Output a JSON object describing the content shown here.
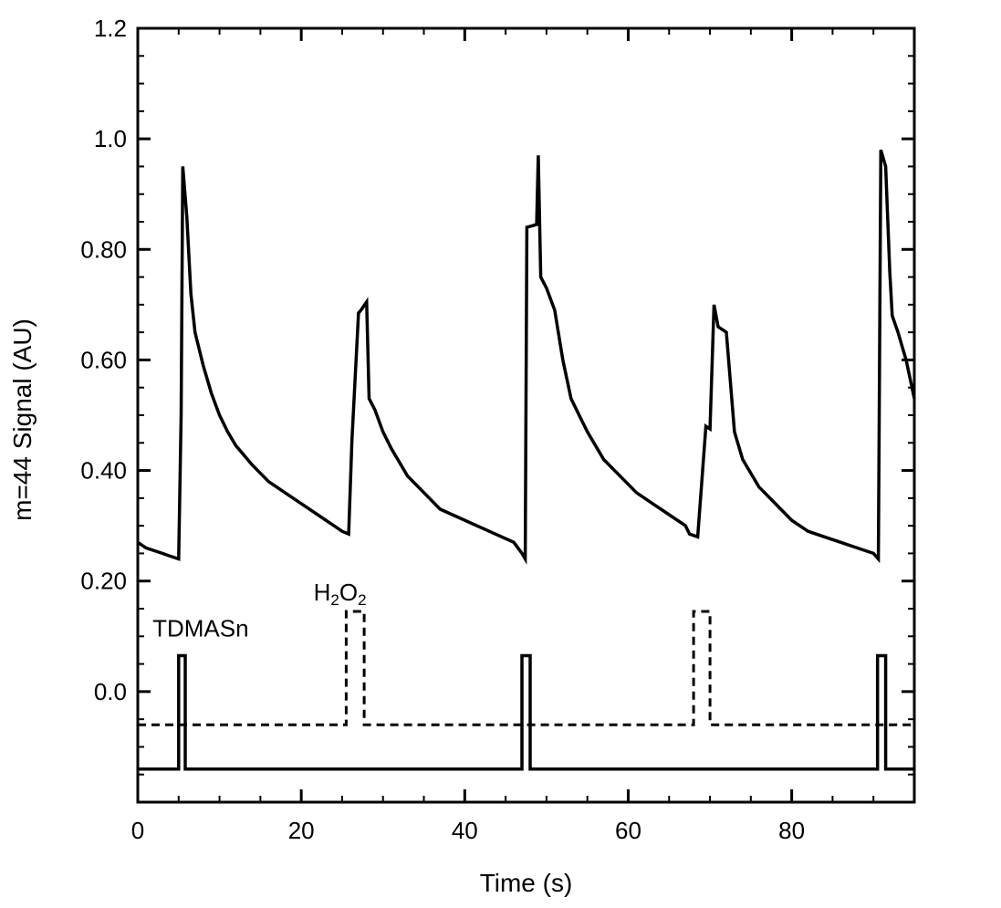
{
  "chart_data": {
    "type": "line",
    "xlabel": "Time (s)",
    "ylabel": "m=44 Signal (AU)",
    "xlim": [
      0,
      95
    ],
    "ylim": [
      -0.2,
      1.2
    ],
    "x_ticks": [
      0,
      20,
      40,
      60,
      80
    ],
    "x_tick_labels": [
      "0",
      "20",
      "40",
      "60",
      "80"
    ],
    "y_ticks": [
      0.0,
      0.2,
      0.4,
      0.6,
      0.8,
      1.0,
      1.2
    ],
    "y_tick_labels": [
      "0.0",
      "0.20",
      "0.40",
      "0.60",
      "0.80",
      "1.0",
      "1.2"
    ],
    "grid": false,
    "annotations": [
      {
        "text": "TDMASn",
        "x": 1.8,
        "y": 0.1
      },
      {
        "text": "H₂O₂",
        "x": 21.5,
        "y": 0.165
      }
    ],
    "series": [
      {
        "style": "solid",
        "color": "#000000",
        "x": [
          0.0,
          1.0,
          2.0,
          3.0,
          4.0,
          5.0,
          5.3,
          5.5,
          6.0,
          6.5,
          7.0,
          8.0,
          9.0,
          10.0,
          11.0,
          12.0,
          14.0,
          16.0,
          18.0,
          20.0,
          22.0,
          23.0,
          24.0,
          25.0,
          25.8,
          26.2,
          27.0,
          27.3,
          28.0,
          28.3,
          29.0,
          30.0,
          31.0,
          33.0,
          35.0,
          37.0,
          40.0,
          43.0,
          46.0,
          47.0,
          47.4,
          47.6,
          48.8,
          49.0,
          49.3,
          50.0,
          51.0,
          52.0,
          53.0,
          54.0,
          55.0,
          57.0,
          59.0,
          61.0,
          63.0,
          65.0,
          67.0,
          67.5,
          68.5,
          69.0,
          69.5,
          70.0,
          70.5,
          71.0,
          72.0,
          73.0,
          74.0,
          76.0,
          78.0,
          80.0,
          82.0,
          84.0,
          86.0,
          88.0,
          90.0,
          90.6,
          90.9,
          91.5,
          92.0,
          92.3,
          93.0,
          94.0,
          95.0
        ],
        "y": [
          0.27,
          0.26,
          0.255,
          0.25,
          0.245,
          0.24,
          0.5,
          0.95,
          0.86,
          0.72,
          0.65,
          0.59,
          0.54,
          0.5,
          0.47,
          0.445,
          0.41,
          0.38,
          0.36,
          0.34,
          0.32,
          0.31,
          0.3,
          0.29,
          0.285,
          0.455,
          0.685,
          0.69,
          0.705,
          0.53,
          0.51,
          0.47,
          0.44,
          0.39,
          0.36,
          0.33,
          0.31,
          0.29,
          0.27,
          0.25,
          0.24,
          0.84,
          0.845,
          0.97,
          0.75,
          0.73,
          0.69,
          0.6,
          0.53,
          0.5,
          0.47,
          0.42,
          0.39,
          0.36,
          0.34,
          0.32,
          0.3,
          0.285,
          0.28,
          0.38,
          0.48,
          0.475,
          0.7,
          0.66,
          0.65,
          0.47,
          0.42,
          0.37,
          0.34,
          0.31,
          0.29,
          0.28,
          0.27,
          0.26,
          0.25,
          0.24,
          0.98,
          0.95,
          0.76,
          0.68,
          0.65,
          0.6,
          0.53
        ]
      },
      {
        "style": "solid",
        "color": "#000000",
        "x": [
          0.0,
          5.0,
          5.0,
          5.8,
          5.8,
          47.0,
          47.0,
          48.0,
          48.0,
          90.5,
          90.5,
          91.5,
          91.5,
          95.0
        ],
        "y": [
          -0.14,
          -0.14,
          0.065,
          0.065,
          -0.14,
          -0.14,
          0.065,
          0.065,
          -0.14,
          -0.14,
          0.065,
          0.065,
          -0.14,
          -0.14
        ]
      },
      {
        "style": "dashed",
        "color": "#000000",
        "x": [
          0.0,
          25.5,
          25.5,
          27.7,
          27.7,
          68.0,
          68.0,
          70.0,
          70.0,
          95.0
        ],
        "y": [
          -0.06,
          -0.06,
          0.145,
          0.145,
          -0.06,
          -0.06,
          0.145,
          0.145,
          -0.06,
          -0.06
        ]
      }
    ]
  }
}
